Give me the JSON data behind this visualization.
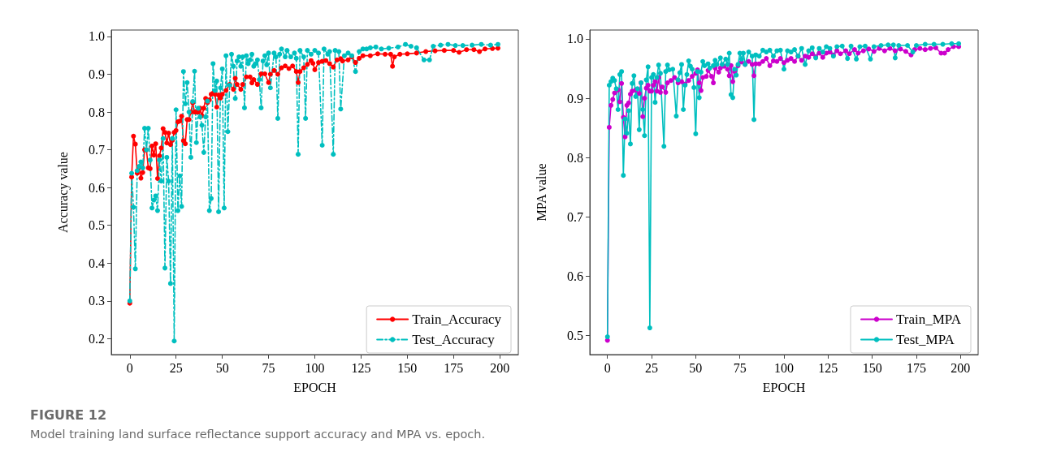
{
  "chart_data": [
    {
      "type": "line",
      "xlabel": "EPOCH",
      "ylabel": "Accuracy value",
      "xlim": [
        -10,
        210
      ],
      "ylim": [
        0.158,
        1.017
      ],
      "xticks": [
        0,
        25,
        50,
        75,
        100,
        125,
        150,
        175,
        200
      ],
      "yticks": [
        0.2,
        0.3,
        0.4,
        0.5,
        0.6,
        0.7,
        0.8,
        0.9,
        {
          "value": 1,
          "label": "1.0"
        }
      ],
      "grid": false,
      "legend": "bottom right",
      "marker": "circle",
      "annotations": [
        "FIGURE 12",
        "Model training land surface reflectance support accuracy and MPA vs. epoch."
      ],
      "series": [
        {
          "name": "Train_Accuracy",
          "color": "#ff0000",
          "line_style": "solid",
          "x": [
            0,
            1,
            2,
            3,
            4,
            5,
            6,
            7,
            8,
            9,
            10,
            11,
            12,
            13,
            14,
            15,
            16,
            17,
            18,
            19,
            20,
            21,
            22,
            23,
            24,
            25,
            26,
            27,
            28,
            29,
            30,
            31,
            32,
            33,
            34,
            35,
            36,
            37,
            38,
            39,
            40,
            41,
            42,
            43,
            44,
            45,
            46,
            47,
            48,
            49,
            50,
            52,
            54,
            56,
            57,
            58,
            60,
            61,
            63,
            65,
            66,
            67,
            69,
            71,
            73,
            75,
            76,
            78,
            80,
            82,
            84,
            86,
            88,
            90,
            91,
            92,
            94,
            96,
            98,
            99,
            100,
            102,
            104,
            106,
            108,
            110,
            112,
            114,
            115,
            118,
            120,
            122,
            124,
            126,
            130,
            134,
            138,
            141,
            142,
            143,
            146,
            150,
            155,
            160,
            165,
            170,
            175,
            178,
            182,
            186,
            189,
            192,
            196,
            199
          ],
          "values": [
            0.294,
            0.628,
            0.736,
            0.715,
            0.638,
            0.654,
            0.625,
            0.64,
            0.7,
            0.7,
            0.652,
            0.65,
            0.71,
            0.686,
            0.716,
            0.624,
            0.684,
            0.705,
            0.756,
            0.746,
            0.718,
            0.744,
            0.714,
            0.725,
            0.746,
            0.751,
            0.774,
            0.776,
            0.789,
            0.724,
            0.716,
            0.78,
            0.78,
            0.8,
            0.824,
            0.8,
            0.8,
            0.8,
            0.81,
            0.79,
            0.81,
            0.836,
            0.825,
            0.832,
            0.847,
            0.85,
            0.847,
            0.813,
            0.845,
            0.837,
            0.847,
            0.857,
            0.873,
            0.86,
            0.889,
            0.873,
            0.86,
            0.873,
            0.893,
            0.893,
            0.877,
            0.886,
            0.873,
            0.901,
            0.901,
            0.878,
            0.9,
            0.91,
            0.9,
            0.917,
            0.922,
            0.915,
            0.922,
            0.907,
            0.878,
            0.907,
            0.917,
            0.926,
            0.936,
            0.929,
            0.912,
            0.931,
            0.934,
            0.936,
            0.928,
            0.919,
            0.938,
            0.941,
            0.935,
            0.938,
            0.946,
            0.931,
            0.942,
            0.949,
            0.949,
            0.954,
            0.953,
            0.953,
            0.921,
            0.946,
            0.953,
            0.954,
            0.956,
            0.96,
            0.962,
            0.963,
            0.963,
            0.958,
            0.965,
            0.965,
            0.96,
            0.967,
            0.968,
            0.969
          ]
        },
        {
          "name": "Test_Accuracy",
          "color": "#00bfbf",
          "line_style": "dashed",
          "x": [
            0,
            1,
            2,
            3,
            4,
            5,
            6,
            7,
            8,
            9,
            10,
            11,
            12,
            13,
            14,
            15,
            16,
            17,
            18,
            19,
            20,
            21,
            22,
            23,
            24,
            25,
            26,
            27,
            28,
            29,
            30,
            31,
            32,
            33,
            34,
            35,
            36,
            37,
            38,
            39,
            40,
            41,
            42,
            43,
            44,
            45,
            46,
            47,
            48,
            49,
            50,
            51,
            52,
            53,
            54,
            55,
            56,
            57,
            58,
            59,
            60,
            61,
            62,
            63,
            64,
            65,
            66,
            67,
            68,
            69,
            70,
            71,
            72,
            73,
            74,
            75,
            76,
            78,
            79,
            80,
            81,
            82,
            84,
            85,
            87,
            89,
            90,
            91,
            92,
            94,
            95,
            96,
            98,
            100,
            102,
            104,
            105,
            107,
            108,
            110,
            111,
            113,
            114,
            116,
            118,
            120,
            122,
            124,
            126,
            128,
            130,
            133,
            136,
            140,
            145,
            149,
            152,
            155,
            159,
            162,
            164,
            168,
            172,
            176,
            180,
            185,
            190,
            195,
            199
          ],
          "values": [
            0.3,
            0.638,
            0.548,
            0.385,
            0.645,
            0.656,
            0.668,
            0.652,
            0.757,
            0.7,
            0.757,
            0.673,
            0.546,
            0.567,
            0.578,
            0.539,
            0.673,
            0.617,
            0.73,
            0.387,
            0.68,
            0.617,
            0.346,
            0.73,
            0.194,
            0.806,
            0.539,
            0.631,
            0.55,
            0.907,
            0.822,
            0.878,
            0.8,
            0.68,
            0.828,
            0.908,
            0.719,
            0.81,
            0.787,
            0.765,
            0.693,
            0.787,
            0.829,
            0.539,
            0.571,
            0.928,
            0.857,
            0.882,
            0.536,
            0.864,
            0.914,
            0.546,
            0.949,
            0.748,
            0.871,
            0.953,
            0.921,
            0.836,
            0.935,
            0.946,
            0.921,
            0.946,
            0.811,
            0.949,
            0.928,
            0.938,
            0.953,
            0.921,
            0.928,
            0.938,
            0.886,
            0.811,
            0.935,
            0.949,
            0.925,
            0.956,
            0.864,
            0.956,
            0.946,
            0.783,
            0.953,
            0.967,
            0.946,
            0.963,
            0.946,
            0.956,
            0.942,
            0.688,
            0.963,
            0.946,
            0.783,
            0.963,
            0.953,
            0.963,
            0.956,
            0.712,
            0.967,
            0.953,
            0.96,
            0.688,
            0.963,
            0.96,
            0.808,
            0.949,
            0.956,
            0.949,
            0.907,
            0.96,
            0.967,
            0.967,
            0.97,
            0.972,
            0.967,
            0.969,
            0.972,
            0.979,
            0.974,
            0.97,
            0.938,
            0.938,
            0.974,
            0.977,
            0.979,
            0.976,
            0.976,
            0.977,
            0.979,
            0.977,
            0.979
          ]
        }
      ]
    },
    {
      "type": "line",
      "xlabel": "EPOCH",
      "ylabel": "MPA value",
      "xlim": [
        -10,
        210
      ],
      "ylim": [
        0.468,
        1.015
      ],
      "xticks": [
        0,
        25,
        50,
        75,
        100,
        125,
        150,
        175,
        200
      ],
      "yticks": [
        0.5,
        0.6,
        0.7,
        0.8,
        0.9,
        {
          "value": 1,
          "label": "1.0"
        }
      ],
      "grid": false,
      "legend": "bottom right",
      "marker": "circle",
      "series": [
        {
          "name": "Train_MPA",
          "color": "#cc00cc",
          "line_style": "solid",
          "x": [
            0,
            1,
            2,
            3,
            4,
            6,
            7,
            8,
            9,
            10,
            11,
            12,
            13,
            14,
            16,
            18,
            19,
            20,
            21,
            22,
            23,
            24,
            25,
            26,
            27,
            28,
            29,
            30,
            31,
            33,
            34,
            36,
            38,
            40,
            42,
            44,
            46,
            48,
            50,
            51,
            52,
            53,
            54,
            56,
            57,
            59,
            60,
            61,
            63,
            64,
            66,
            68,
            69,
            70,
            71,
            72,
            74,
            76,
            78,
            80,
            82,
            83,
            84,
            86,
            88,
            90,
            92,
            94,
            96,
            98,
            100,
            102,
            104,
            106,
            108,
            110,
            112,
            114,
            116,
            118,
            120,
            122,
            124,
            126,
            128,
            130,
            132,
            135,
            137,
            140,
            142,
            145,
            148,
            151,
            154,
            157,
            160,
            163,
            166,
            169,
            172,
            174,
            177,
            180,
            183,
            186,
            189,
            191,
            193,
            196,
            199
          ],
          "values": [
            0.492,
            0.851,
            0.888,
            0.898,
            0.909,
            0.914,
            0.894,
            0.925,
            0.868,
            0.835,
            0.888,
            0.892,
            0.907,
            0.912,
            0.914,
            0.908,
            0.926,
            0.869,
            0.9,
            0.917,
            0.922,
            0.912,
            0.912,
            0.922,
            0.928,
            0.912,
            0.935,
            0.91,
            0.919,
            0.91,
            0.926,
            0.93,
            0.935,
            0.926,
            0.928,
            0.924,
            0.93,
            0.937,
            0.942,
            0.948,
            0.926,
            0.913,
            0.935,
            0.937,
            0.947,
            0.937,
            0.926,
            0.951,
            0.944,
            0.951,
            0.954,
            0.949,
            0.938,
            0.955,
            0.928,
            0.945,
            0.955,
            0.961,
            0.957,
            0.962,
            0.957,
            0.938,
            0.958,
            0.958,
            0.962,
            0.967,
            0.955,
            0.963,
            0.962,
            0.967,
            0.96,
            0.964,
            0.967,
            0.962,
            0.971,
            0.964,
            0.971,
            0.969,
            0.975,
            0.97,
            0.976,
            0.969,
            0.976,
            0.978,
            0.973,
            0.98,
            0.975,
            0.98,
            0.975,
            0.982,
            0.976,
            0.98,
            0.983,
            0.979,
            0.984,
            0.98,
            0.984,
            0.98,
            0.983,
            0.979,
            0.973,
            0.982,
            0.984,
            0.982,
            0.984,
            0.985,
            0.976,
            0.976,
            0.982,
            0.987,
            0.987
          ]
        },
        {
          "name": "Test_MPA",
          "color": "#00bfbf",
          "line_style": "solid",
          "x": [
            0,
            1,
            2,
            3,
            4,
            5,
            6,
            7,
            8,
            9,
            10,
            11,
            12,
            13,
            14,
            15,
            16,
            17,
            18,
            19,
            20,
            21,
            22,
            23,
            24,
            25,
            26,
            27,
            28,
            29,
            30,
            32,
            33,
            34,
            35,
            37,
            39,
            40,
            41,
            42,
            43,
            44,
            45,
            46,
            47,
            48,
            49,
            50,
            51,
            52,
            53,
            54,
            55,
            57,
            58,
            60,
            61,
            62,
            64,
            65,
            67,
            68,
            69,
            70,
            71,
            72,
            73,
            74,
            75,
            76,
            77,
            78,
            80,
            82,
            83,
            84,
            86,
            88,
            90,
            92,
            94,
            96,
            98,
            100,
            102,
            104,
            106,
            108,
            110,
            112,
            114,
            116,
            118,
            120,
            122,
            124,
            126,
            128,
            130,
            133,
            136,
            138,
            141,
            143,
            146,
            149,
            151,
            155,
            159,
            162,
            163,
            165,
            170,
            173,
            175,
            180,
            185,
            190,
            195,
            199
          ],
          "values": [
            0.498,
            0.922,
            0.928,
            0.934,
            0.93,
            0.916,
            0.881,
            0.94,
            0.945,
            0.77,
            0.865,
            0.841,
            0.879,
            0.823,
            0.925,
            0.938,
            0.903,
            0.916,
            0.847,
            0.926,
            0.881,
            0.837,
            0.931,
            0.953,
            0.513,
            0.935,
            0.94,
            0.893,
            0.935,
            0.956,
            0.942,
            0.819,
            0.945,
            0.956,
            0.948,
            0.949,
            0.87,
            0.931,
            0.943,
            0.957,
            0.881,
            0.922,
            0.94,
            0.963,
            0.954,
            0.949,
            0.918,
            0.84,
            0.945,
            0.901,
            0.944,
            0.962,
            0.955,
            0.958,
            0.951,
            0.955,
            0.964,
            0.957,
            0.968,
            0.957,
            0.966,
            0.957,
            0.976,
            0.906,
            0.901,
            0.949,
            0.939,
            0.957,
            0.976,
            0.966,
            0.976,
            0.957,
            0.978,
            0.971,
            0.864,
            0.973,
            0.971,
            0.981,
            0.978,
            0.981,
            0.971,
            0.98,
            0.981,
            0.949,
            0.98,
            0.978,
            0.982,
            0.971,
            0.984,
            0.957,
            0.98,
            0.985,
            0.968,
            0.984,
            0.978,
            0.987,
            0.984,
            0.971,
            0.987,
            0.988,
            0.967,
            0.988,
            0.966,
            0.987,
            0.988,
            0.966,
            0.987,
            0.989,
            0.99,
            0.99,
            0.968,
            0.989,
            0.989,
            0.978,
            0.989,
            0.991,
            0.991,
            0.991,
            0.992,
            0.992
          ]
        }
      ]
    }
  ]
}
